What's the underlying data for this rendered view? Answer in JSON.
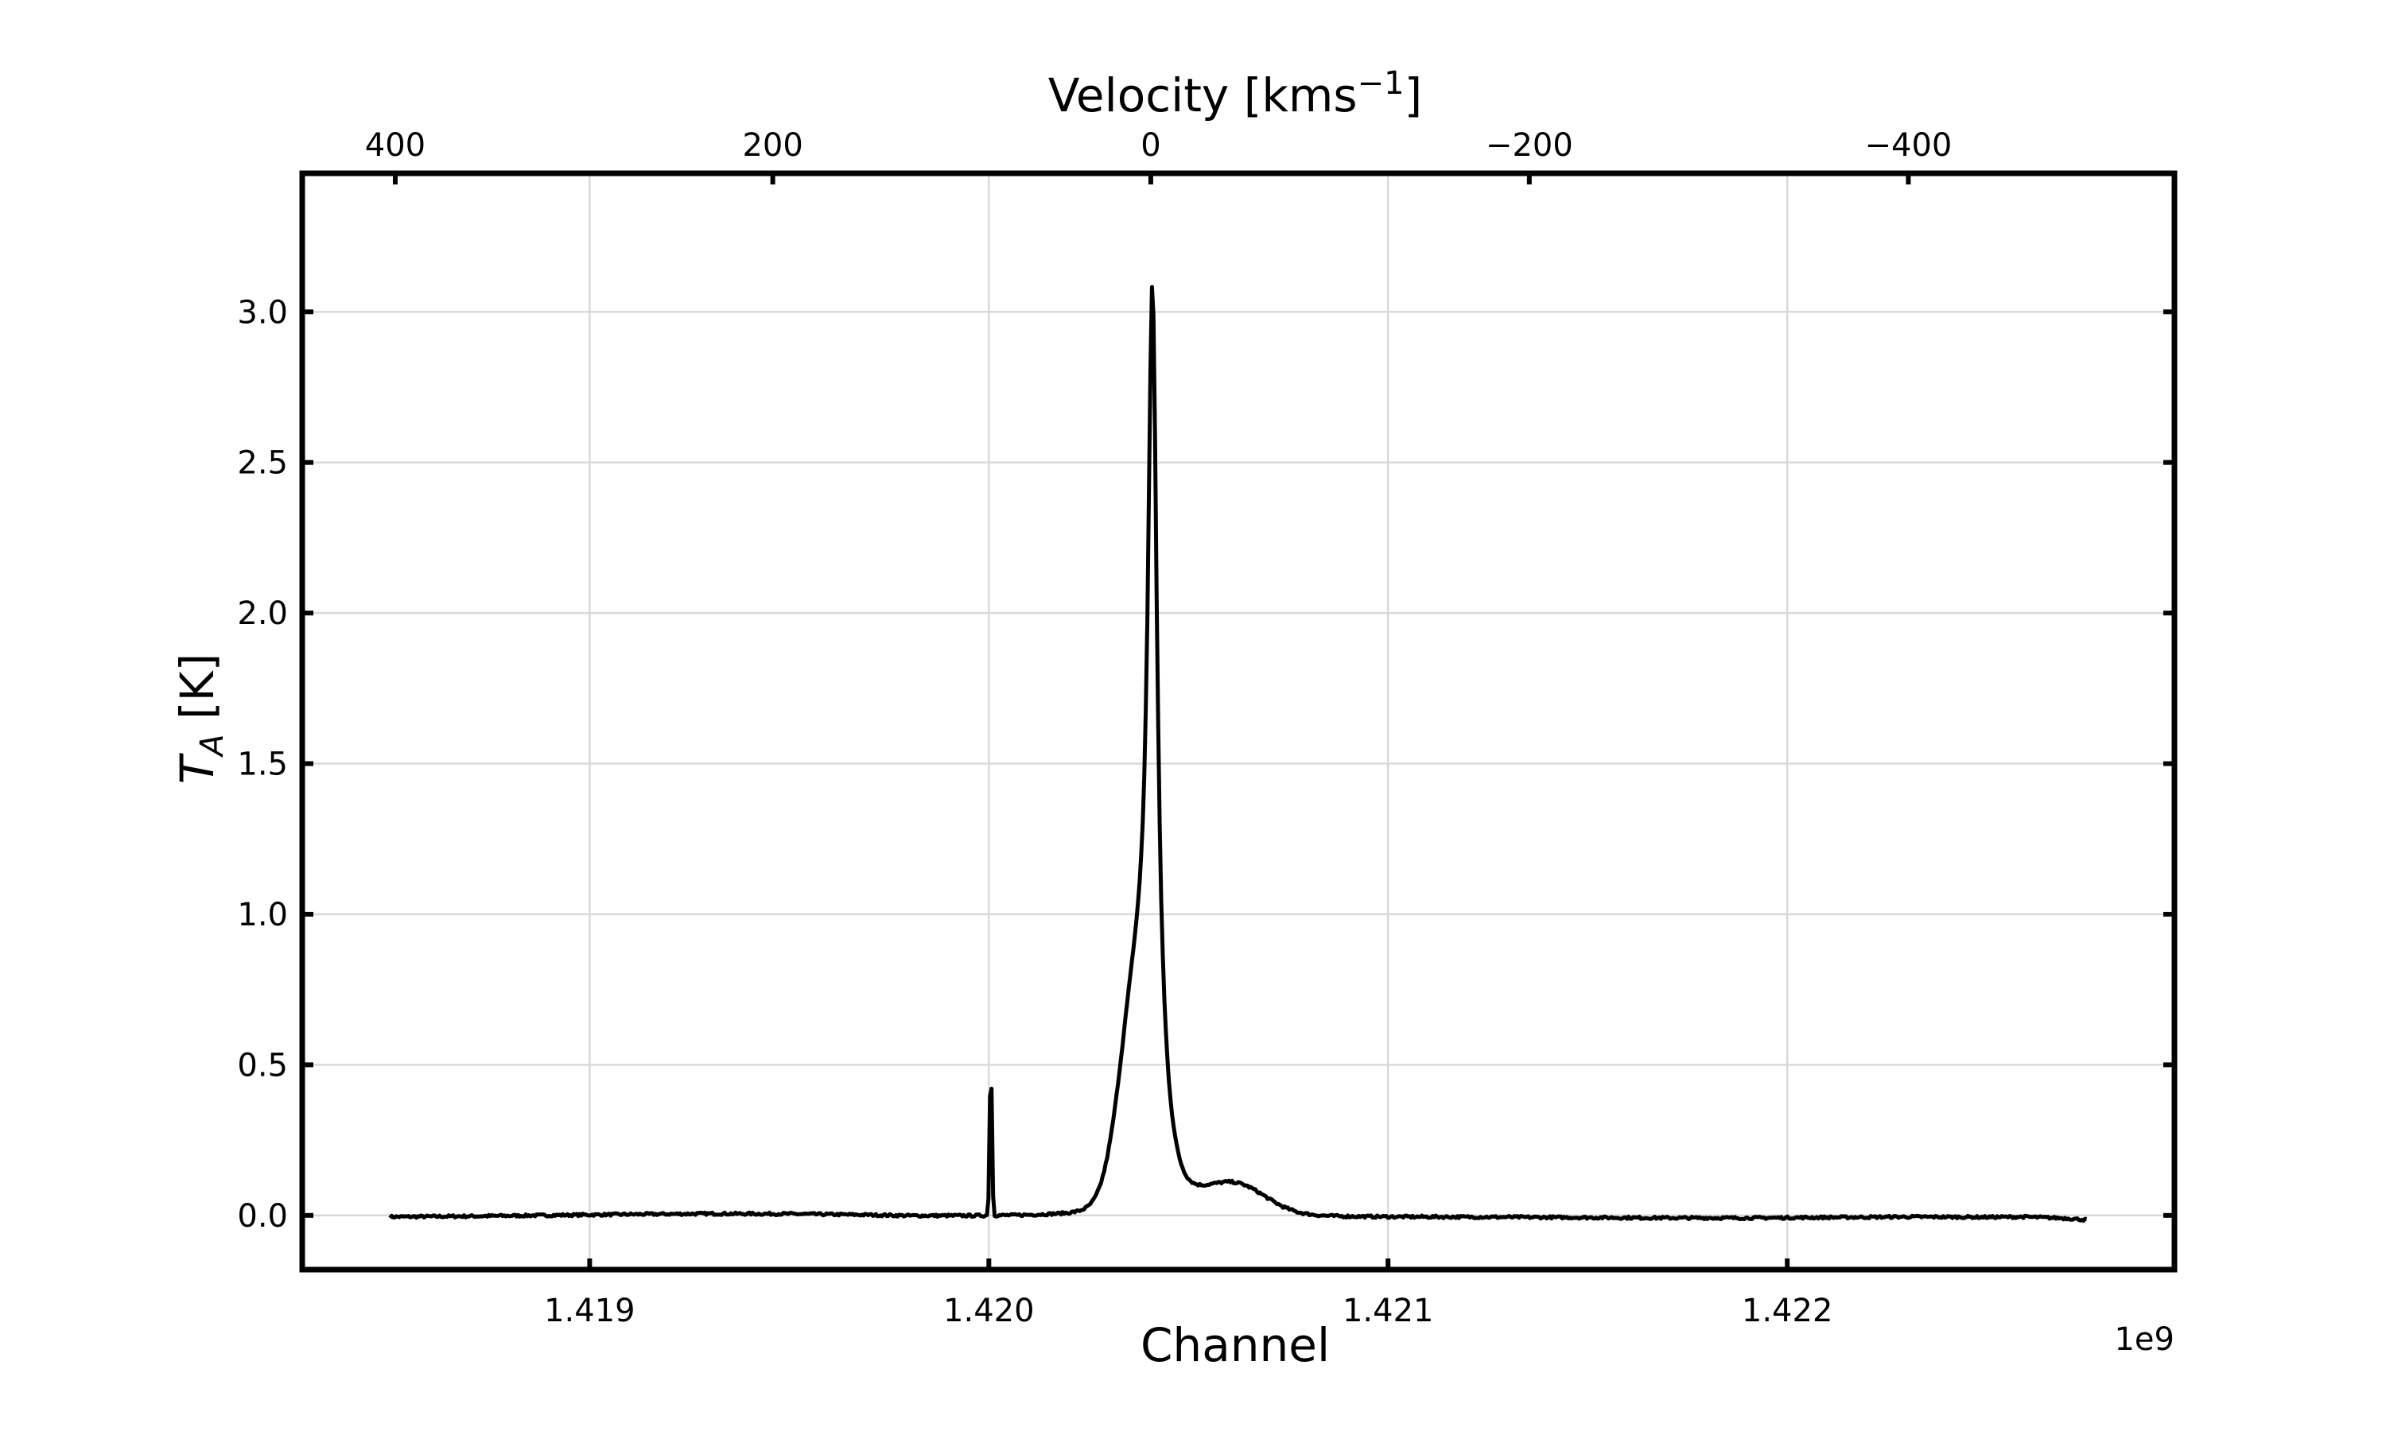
{
  "chart_data": {
    "type": "line",
    "xlabel": "Channel",
    "ylabel_main": "T",
    "ylabel_sub": "A",
    "ylabel_unit": " [K]",
    "top_xlabel_main": "Velocity [kms",
    "top_xlabel_sup": "−1",
    "top_xlabel_end": "]",
    "x_offset_text": "1e9",
    "xlim": [
      1.41828,
      1.42297
    ],
    "ylim": [
      -0.18,
      3.46
    ],
    "grid": true,
    "x_ticks": [
      {
        "value": 1.419,
        "label": "1.419"
      },
      {
        "value": 1.42,
        "label": "1.420"
      },
      {
        "value": 1.421,
        "label": "1.421"
      },
      {
        "value": 1.422,
        "label": "1.422"
      }
    ],
    "y_ticks": [
      {
        "value": 0.0,
        "label": "0.0"
      },
      {
        "value": 0.5,
        "label": "0.5"
      },
      {
        "value": 1.0,
        "label": "1.0"
      },
      {
        "value": 1.5,
        "label": "1.5"
      },
      {
        "value": 2.0,
        "label": "2.0"
      },
      {
        "value": 2.5,
        "label": "2.5"
      },
      {
        "value": 3.0,
        "label": "3.0"
      }
    ],
    "top_ticks": [
      {
        "velocity": 400,
        "label": "400"
      },
      {
        "velocity": 200,
        "label": "200"
      },
      {
        "velocity": 0,
        "label": "0"
      },
      {
        "velocity": -200,
        "label": "−200"
      },
      {
        "velocity": -400,
        "label": "−400"
      }
    ],
    "rest_frequency": 1.4204057,
    "series": [
      {
        "color": "#000000",
        "points": [
          [
            1.4185,
            -0.005
          ],
          [
            1.4187,
            -0.003
          ],
          [
            1.4189,
            0.0
          ],
          [
            1.4191,
            0.003
          ],
          [
            1.4193,
            0.005
          ],
          [
            1.4195,
            0.004
          ],
          [
            1.4197,
            0.0
          ],
          [
            1.4198,
            -0.003
          ],
          [
            1.42,
            -0.005
          ],
          [
            1.42015,
            -0.006
          ],
          [
            1.4203,
            -0.008
          ],
          [
            1.4205,
            -0.009
          ],
          [
            1.4207,
            -0.009
          ],
          [
            1.4209,
            -0.008
          ],
          [
            1.4211,
            -0.007
          ],
          [
            1.4213,
            -0.007
          ],
          [
            1.4215,
            -0.008
          ],
          [
            1.4217,
            -0.009
          ],
          [
            1.4219,
            -0.009
          ],
          [
            1.4221,
            -0.007
          ],
          [
            1.4223,
            -0.005
          ],
          [
            1.4225,
            -0.006
          ],
          [
            1.4226,
            -0.005
          ],
          [
            1.4227,
            -0.01
          ],
          [
            1.42275,
            -0.015
          ]
        ]
      }
    ]
  }
}
